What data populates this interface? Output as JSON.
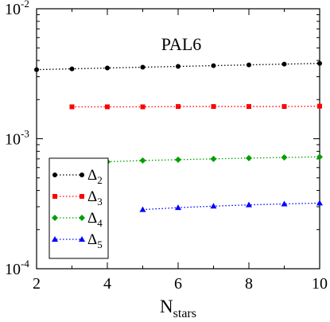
{
  "chart_data": {
    "type": "scatter",
    "title": "PAL6",
    "xlabel": "N",
    "xlabel_sub": "stars",
    "ylabel": "",
    "xlim": [
      2,
      10
    ],
    "ylim": [
      0.0001,
      0.01
    ],
    "yscale": "log",
    "x_ticks": [
      2,
      4,
      6,
      8,
      10
    ],
    "x_tick_labels": [
      "2",
      "4",
      "6",
      "8",
      "10"
    ],
    "y_ticks": [
      0.0001,
      0.001,
      0.01
    ],
    "y_tick_labels": [
      {
        "base": "10",
        "exp": "-4"
      },
      {
        "base": "10",
        "exp": "-3"
      },
      {
        "base": "10",
        "exp": "-2"
      }
    ],
    "grid": false,
    "legend_position": "bottom-left",
    "series": [
      {
        "name": "Δ",
        "sub": "2",
        "color": "#000000",
        "marker": "circle",
        "x": [
          2,
          3,
          4,
          5,
          6,
          7,
          8,
          9,
          10
        ],
        "y": [
          0.0034,
          0.00345,
          0.0035,
          0.00355,
          0.0036,
          0.00365,
          0.0037,
          0.00375,
          0.0038
        ]
      },
      {
        "name": "Δ",
        "sub": "3",
        "color": "#ff0000",
        "marker": "square",
        "x": [
          3,
          4,
          5,
          6,
          7,
          8,
          9,
          10
        ],
        "y": [
          0.00176,
          0.00176,
          0.00176,
          0.00177,
          0.00177,
          0.00177,
          0.00177,
          0.00178
        ]
      },
      {
        "name": "Δ",
        "sub": "4",
        "color": "#00a000",
        "marker": "diamond",
        "x": [
          4,
          5,
          6,
          7,
          8,
          9,
          10
        ],
        "y": [
          0.000665,
          0.00068,
          0.00069,
          0.0007,
          0.00071,
          0.000718,
          0.000725
        ]
      },
      {
        "name": "Δ",
        "sub": "5",
        "color": "#0000ff",
        "marker": "triangle",
        "x": [
          5,
          6,
          7,
          8,
          9,
          10
        ],
        "y": [
          0.000285,
          0.000295,
          0.000303,
          0.00031,
          0.000315,
          0.00032
        ]
      }
    ]
  }
}
